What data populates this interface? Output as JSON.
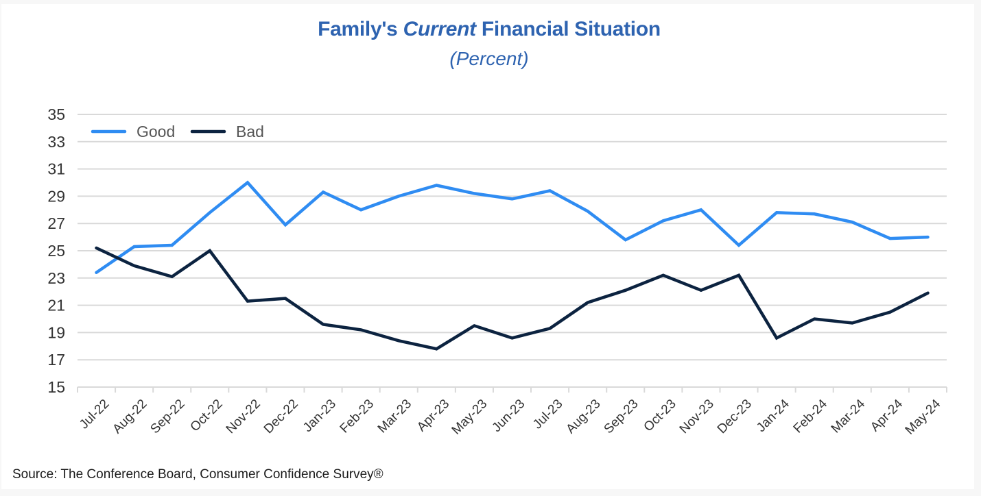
{
  "chart_data": {
    "type": "line",
    "title": "Family's Current Financial Situation",
    "title_parts": [
      {
        "text": "Family's ",
        "italic": false
      },
      {
        "text": "Current",
        "italic": true
      },
      {
        "text": " Financial Situation",
        "italic": false
      }
    ],
    "subtitle": "(Percent)",
    "xlabel": "",
    "ylabel": "",
    "ylim": [
      15,
      35
    ],
    "yticks": [
      15,
      17,
      19,
      21,
      23,
      25,
      27,
      29,
      31,
      33,
      35
    ],
    "grid": true,
    "legend_position": "top-left",
    "categories": [
      "Jul-22",
      "Aug-22",
      "Sep-22",
      "Oct-22",
      "Nov-22",
      "Dec-22",
      "Jan-23",
      "Feb-23",
      "Mar-23",
      "Apr-23",
      "May-23",
      "Jun-23",
      "Jul-23",
      "Aug-23",
      "Sep-23",
      "Oct-23",
      "Nov-23",
      "Dec-23",
      "Jan-24",
      "Feb-24",
      "Mar-24",
      "Apr-24",
      "May-24"
    ],
    "series": [
      {
        "name": "Good",
        "color": "#2f8cf2",
        "values": [
          23.4,
          25.3,
          25.4,
          27.8,
          30.0,
          26.9,
          29.3,
          28.0,
          29.0,
          29.8,
          29.2,
          28.8,
          29.4,
          27.9,
          25.8,
          27.2,
          28.0,
          25.4,
          27.8,
          27.7,
          27.1,
          25.9,
          26.0
        ]
      },
      {
        "name": "Bad",
        "color": "#0c2340",
        "values": [
          25.2,
          23.9,
          23.1,
          25.0,
          21.3,
          21.5,
          19.6,
          19.2,
          18.4,
          17.8,
          19.5,
          18.6,
          19.3,
          21.2,
          22.1,
          23.2,
          22.1,
          23.2,
          18.6,
          20.0,
          19.7,
          20.5,
          21.9
        ]
      }
    ],
    "source": "Source: The Conference Board, Consumer Confidence Survey®"
  }
}
